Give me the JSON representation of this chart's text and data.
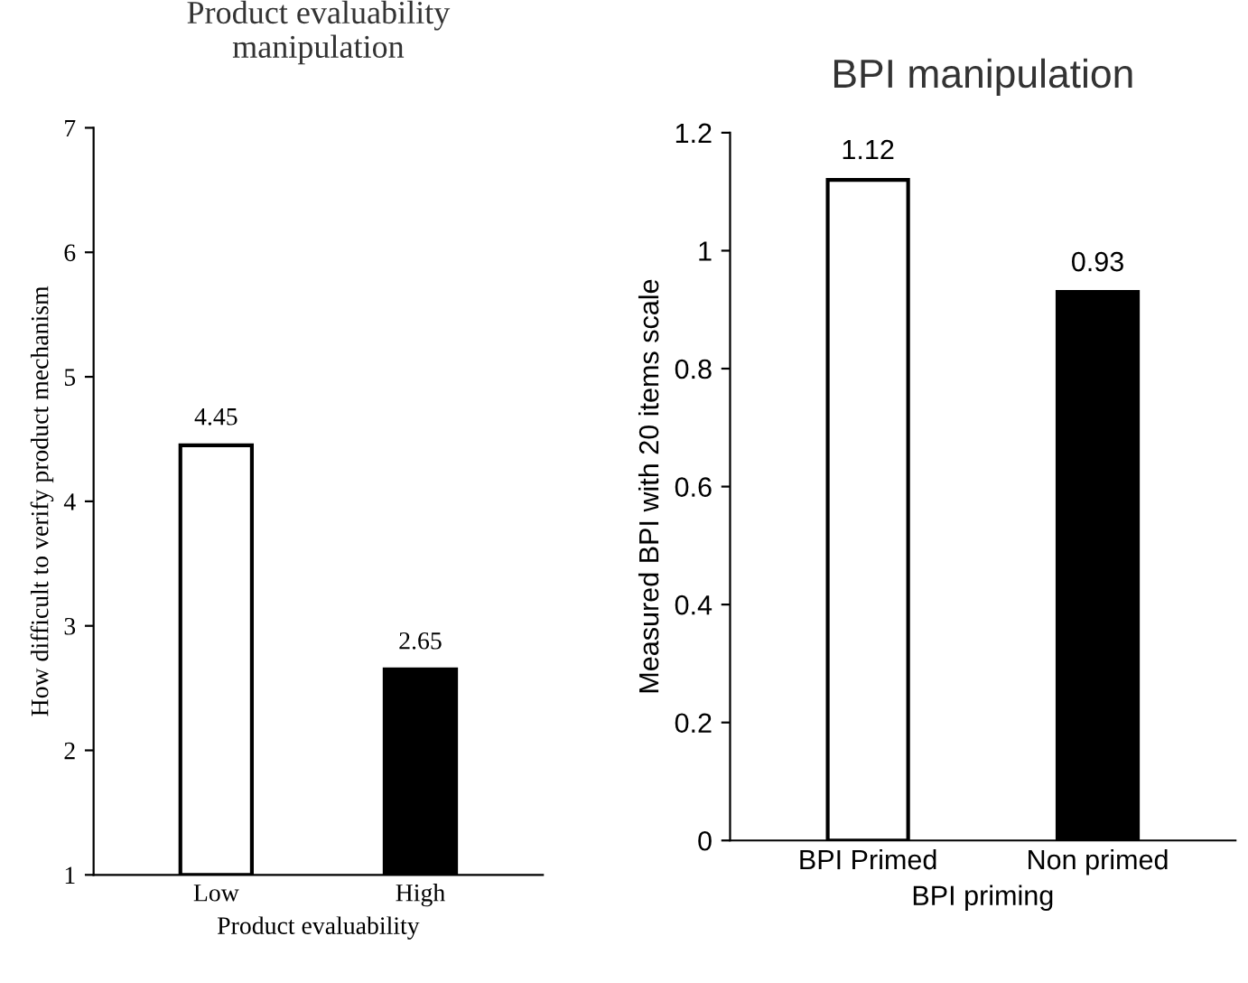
{
  "chart_data": [
    {
      "type": "bar",
      "title": "Product evaluability\nmanipulation",
      "xlabel": "Product evaluability",
      "ylabel": "How difficult to verify product mechanism",
      "categories": [
        "Low",
        "High"
      ],
      "values": [
        4.45,
        2.65
      ],
      "colors": [
        "#ffffff",
        "#000000"
      ],
      "ylim": [
        1,
        7
      ],
      "yticks": [
        1,
        2,
        3,
        4,
        5,
        6,
        7
      ],
      "data_labels": true,
      "grid": false,
      "legend": false
    },
    {
      "type": "bar",
      "title": "BPI manipulation",
      "xlabel": "BPI priming",
      "ylabel": "Measured BPI with 20 items scale",
      "categories": [
        "BPI Primed",
        "Non primed"
      ],
      "values": [
        1.12,
        0.93
      ],
      "colors": [
        "#ffffff",
        "#000000"
      ],
      "ylim": [
        0,
        1.2
      ],
      "yticks": [
        0,
        0.2,
        0.4,
        0.6,
        0.8,
        1,
        1.2
      ],
      "data_labels": true,
      "grid": false,
      "legend": false
    }
  ]
}
